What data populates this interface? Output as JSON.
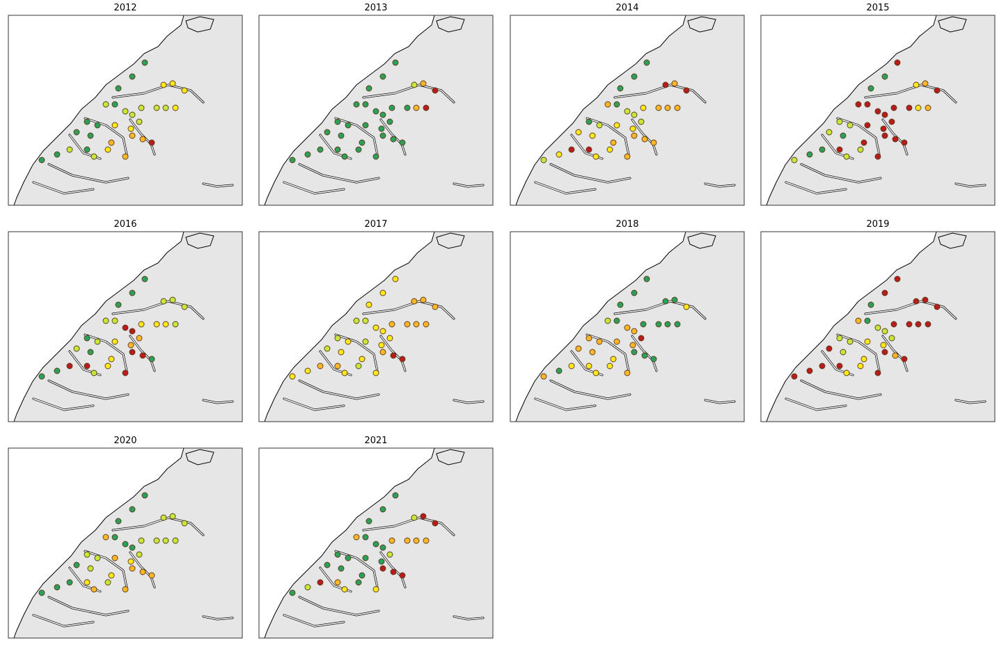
{
  "panels": [
    {
      "title": "2012",
      "point_colors": [
        "#2ca05a",
        "#2ca05a",
        "#2ca05a",
        "#c5e83a",
        "#2ca05a",
        "#ffe81a",
        "#ffe81a",
        "#ffe81a",
        "#c5e83a",
        "#c5e83a",
        "#c5e83a",
        "#ffe81a",
        "#c5e83a",
        "#c5e83a",
        "#c5e83a",
        "#2ca05a",
        "#2ca05a",
        "#ffe81a",
        "#ffe81a",
        "#2ca05a",
        "#2ca05a",
        "#ffb627",
        "#ffb627",
        "#ffb627",
        "#b81c1c",
        "#c5e83a",
        "#2ca05a",
        "#ffe81a",
        "#ffb627",
        "#c5e83a",
        "#2ca05a",
        "#2ca05a"
      ]
    },
    {
      "title": "2013",
      "point_colors": [
        "#2ca05a",
        "#2ca05a",
        "#2ca05a",
        "#2ca05a",
        "#2ca05a",
        "#c5e83a",
        "#ffb627",
        "#b81c1c",
        "#2ca05a",
        "#2ca05a",
        "#ffb627",
        "#b81c1c",
        "#2ca05a",
        "#2ca05a",
        "#2ca05a",
        "#2ca05a",
        "#2ca05a",
        "#2ca05a",
        "#2ca05a",
        "#2ca05a",
        "#2ca05a",
        "#2ca05a",
        "#2ca05a",
        "#2ca05a",
        "#2ca05a",
        "#2ca05a",
        "#2ca05a",
        "#2ca05a",
        "#2ca05a",
        "#2ca05a",
        "#2ca05a",
        "#2ca05a"
      ]
    },
    {
      "title": "2014",
      "point_colors": [
        "#2ca05a",
        "#2ca05a",
        "#2ca05a",
        "#ffb627",
        "#2ca05a",
        "#b81c1c",
        "#ffb627",
        "#b81c1c",
        "#ffe81a",
        "#ffb627",
        "#ffb627",
        "#ffb627",
        "#c5e83a",
        "#c5e83a",
        "#c5e83a",
        "#2ca05a",
        "#c5e83a",
        "#ffe81a",
        "#ffe81a",
        "#ffe81a",
        "#ffe81a",
        "#ffb627",
        "#ffb627",
        "#ffb627",
        "#ffb627",
        "#b81c1c",
        "#b81c1c",
        "#ffe81a",
        "#ffb627",
        "#ffe81a",
        "#ffe81a",
        "#c5e83a"
      ]
    },
    {
      "title": "2015",
      "point_colors": [
        "#b81c1c",
        "#2ca05a",
        "#2ca05a",
        "#b81c1c",
        "#b81c1c",
        "#ffe81a",
        "#ffb627",
        "#b81c1c",
        "#b81c1c",
        "#b81c1c",
        "#ffe81a",
        "#ffb627",
        "#b81c1c",
        "#b81c1c",
        "#b81c1c",
        "#c5e83a",
        "#c5e83a",
        "#b81c1c",
        "#b81c1c",
        "#c5e83a",
        "#2ca05a",
        "#b81c1c",
        "#b81c1c",
        "#b81c1c",
        "#b81c1c",
        "#2ca05a",
        "#b81c1c",
        "#c5e83a",
        "#b81c1c",
        "#c5e83a",
        "#2ca05a",
        "#c5e83a"
      ]
    },
    {
      "title": "2016",
      "point_colors": [
        "#2ca05a",
        "#2ca05a",
        "#2ca05a",
        "#c5e83a",
        "#c5e83a",
        "#c5e83a",
        "#c5e83a",
        "#c5e83a",
        "#ffe81a",
        "#ffe81a",
        "#ffe81a",
        "#c5e83a",
        "#b81c1c",
        "#b81c1c",
        "#ffb627",
        "#2ca05a",
        "#c5e83a",
        "#ffe81a",
        "#ffb627",
        "#c5e83a",
        "#2ca05a",
        "#ffe81a",
        "#b81c1c",
        "#b81c1c",
        "#2ca05a",
        "#b81c1c",
        "#b81c1c",
        "#ffe81a",
        "#b81c1c",
        "#c5e83a",
        "#2ca05a",
        "#2ca05a"
      ]
    },
    {
      "title": "2017",
      "point_colors": [
        "#ffe81a",
        "#ffe81a",
        "#ffe81a",
        "#c5e83a",
        "#c5e83a",
        "#ffb627",
        "#ffb627",
        "#ffb627",
        "#ffb627",
        "#ffb627",
        "#ffb627",
        "#ffb627",
        "#ffe81a",
        "#ffe81a",
        "#ffe81a",
        "#c5e83a",
        "#ffe81a",
        "#c5e83a",
        "#ffe81a",
        "#c5e83a",
        "#ffe81a",
        "#ffe81a",
        "#ffb627",
        "#b81c1c",
        "#b81c1c",
        "#ffb627",
        "#ffb627",
        "#c5e83a",
        "#ffe81a",
        "#ffe81a",
        "#ffe81a",
        "#ffe81a"
      ]
    },
    {
      "title": "2018",
      "point_colors": [
        "#2ca05a",
        "#2ca05a",
        "#2ca05a",
        "#c5e83a",
        "#2ca05a",
        "#2ca05a",
        "#2ca05a",
        "#ffe81a",
        "#2ca05a",
        "#2ca05a",
        "#2ca05a",
        "#2ca05a",
        "#ffb627",
        "#ffb627",
        "#b81c1c",
        "#ffb627",
        "#ffb627",
        "#ffb627",
        "#ffb627",
        "#ffb627",
        "#ffb627",
        "#ffe81a",
        "#2ca05a",
        "#2ca05a",
        "#2ca05a",
        "#ffe81a",
        "#ffe81a",
        "#ffe81a",
        "#ffb627",
        "#ffe81a",
        "#2ca05a",
        "#ffb627"
      ]
    },
    {
      "title": "2019",
      "point_colors": [
        "#b81c1c",
        "#b81c1c",
        "#2ca05a",
        "#ffb627",
        "#2ca05a",
        "#b81c1c",
        "#b81c1c",
        "#b81c1c",
        "#b81c1c",
        "#b81c1c",
        "#b81c1c",
        "#b81c1c",
        "#c5e83a",
        "#c5e83a",
        "#c5e83a",
        "#c5e83a",
        "#c5e83a",
        "#ffe81a",
        "#ffe81a",
        "#b81c1c",
        "#c5e83a",
        "#ffe81a",
        "#b81c1c",
        "#ffb627",
        "#b81c1c",
        "#b81c1c",
        "#b81c1c",
        "#ffe81a",
        "#b81c1c",
        "#ffe81a",
        "#b81c1c",
        "#b81c1c"
      ]
    },
    {
      "title": "2020",
      "point_colors": [
        "#2ca05a",
        "#2ca05a",
        "#2ca05a",
        "#ffb627",
        "#2ca05a",
        "#c5e83a",
        "#c5e83a",
        "#c5e83a",
        "#c5e83a",
        "#c5e83a",
        "#c5e83a",
        "#c5e83a",
        "#2ca05a",
        "#2ca05a",
        "#c5e83a",
        "#c5e83a",
        "#c5e83a",
        "#ffb627",
        "#ffe81a",
        "#2ca05a",
        "#c5e83a",
        "#ffe81a",
        "#ffb627",
        "#ffb627",
        "#ffb627",
        "#2ca05a",
        "#ffe81a",
        "#c5e83a",
        "#ffb627",
        "#ffb627",
        "#2ca05a",
        "#2ca05a"
      ]
    },
    {
      "title": "2021",
      "point_colors": [
        "#2ca05a",
        "#2ca05a",
        "#2ca05a",
        "#ffb627",
        "#2ca05a",
        "#c5e83a",
        "#b81c1c",
        "#b81c1c",
        "#ffb627",
        "#ffb627",
        "#ffb627",
        "#ffb627",
        "#2ca05a",
        "#2ca05a",
        "#c5e83a",
        "#2ca05a",
        "#2ca05a",
        "#2ca05a",
        "#2ca05a",
        "#2ca05a",
        "#2ca05a",
        "#2ca05a",
        "#b81c1c",
        "#b81c1c",
        "#b81c1c",
        "#b81c1c",
        "#ffb627",
        "#2ca05a",
        "#ffe81a",
        "#ffe81a",
        "#c5e83a",
        "#2ca05a"
      ]
    }
  ]
}
